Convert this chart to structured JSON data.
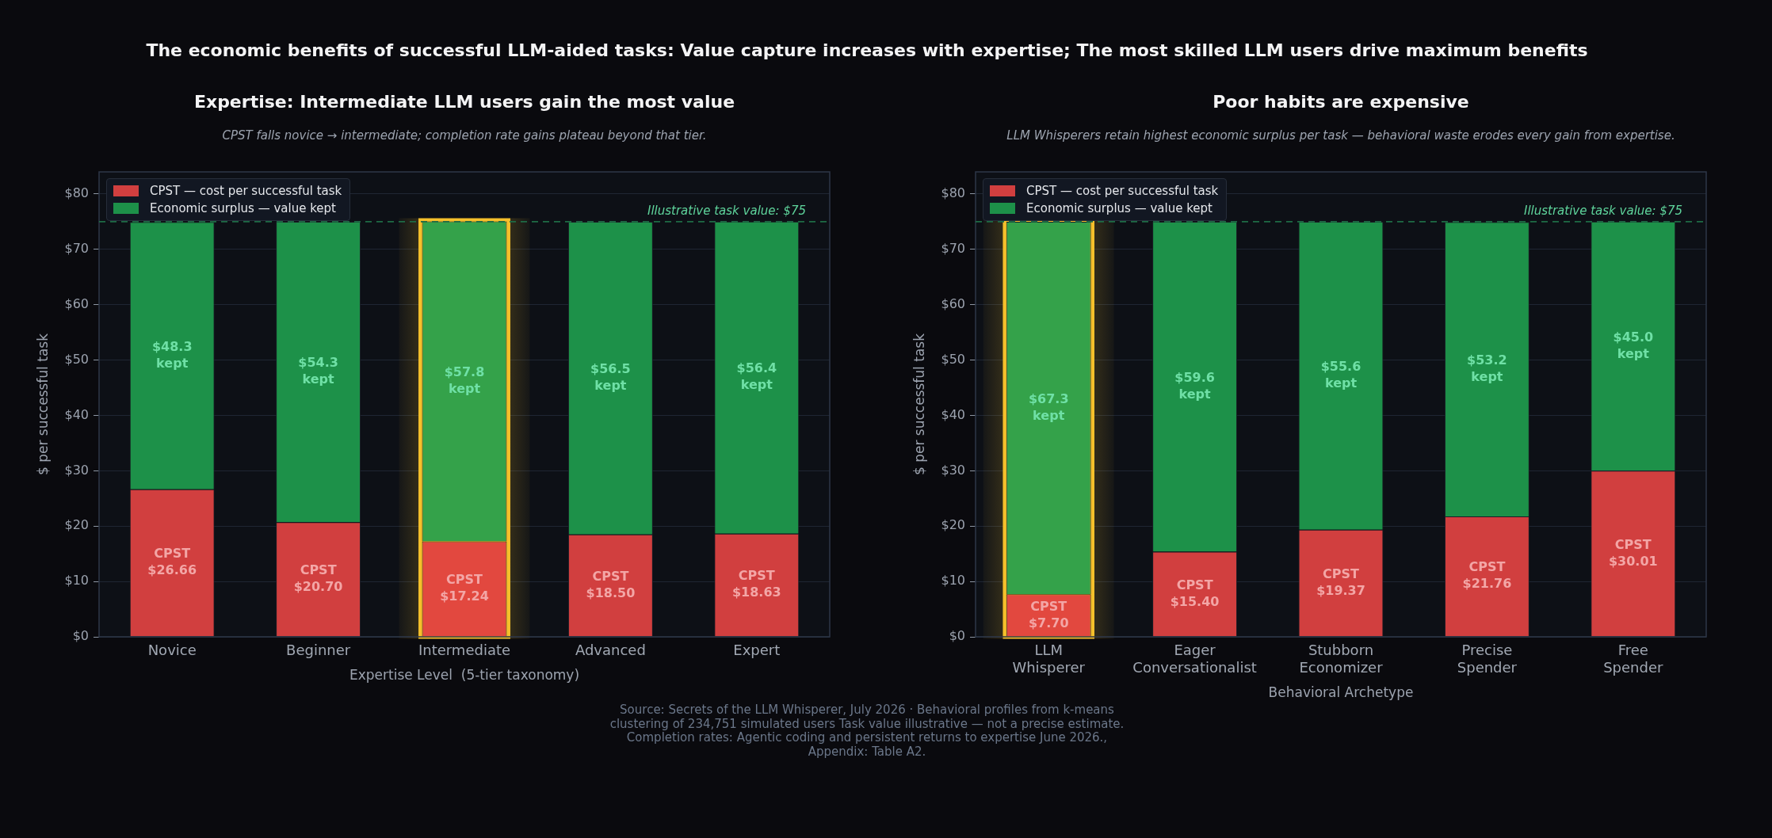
{
  "chart_data": [
    {
      "type": "other",
      "title": "The economic benefits of successful LLM-aided tasks: Value capture increases with expertise; The most skilled LLM users drive maximum benefits",
      "annotations": [
        "Source: Secrets of the LLM Whisperer, July 2026  ·  Behavioral profiles from k-means clustering of 234,751 simulated users   Task value illustrative — not a precise estimate.  Completion rates: Agentic coding and persistent returns to expertise June 2026., Appendix: Table A2."
      ]
    },
    {
      "type": "bar",
      "stacked": true,
      "title": "Expertise: Intermediate LLM users gain the most value",
      "subtitle": "CPST falls novice → intermediate; completion rate gains plateau beyond that tier.",
      "xlabel": "Expertise Level  (5-tier taxonomy)",
      "ylabel": "$ per successful task",
      "categories": [
        "Novice",
        "Beginner",
        "Intermediate",
        "Advanced",
        "Expert"
      ],
      "series": [
        {
          "name": "CPST — cost per successful task",
          "color": "#d13f3f",
          "colors": [
            "#d13f3f",
            "#d13f3f",
            "#e2483f",
            "#d13f3f",
            "#d13f3f"
          ],
          "values": [
            26.66,
            20.7,
            17.24,
            18.5,
            18.63
          ],
          "value_labels": [
            "CPST $26.66",
            "CPST $20.70",
            "CPST $17.24",
            "CPST $18.50",
            "CPST $18.63"
          ]
        },
        {
          "name": "Economic surplus — value kept",
          "color": "#1d9149",
          "colors": [
            "#1d9149",
            "#1d9149",
            "#34a24a",
            "#1d9149",
            "#1d9149"
          ],
          "values": [
            48.3,
            54.3,
            57.8,
            56.5,
            56.4
          ],
          "value_labels": [
            "$48.3 kept",
            "$54.3 kept",
            "$57.8 kept",
            "$56.5 kept",
            "$56.4 kept"
          ]
        }
      ],
      "ylim": [
        0,
        84
      ],
      "yticks": [
        {
          "value": 0,
          "label": "$0"
        },
        {
          "value": 10,
          "label": "$10"
        },
        {
          "value": 20,
          "label": "$20"
        },
        {
          "value": 30,
          "label": "$30"
        },
        {
          "value": 40,
          "label": "$40"
        },
        {
          "value": 50,
          "label": "$50"
        },
        {
          "value": 60,
          "label": "$60"
        },
        {
          "value": 70,
          "label": "$70"
        },
        {
          "value": 80,
          "label": "$80"
        }
      ],
      "grid": "y",
      "legend": "top left",
      "ref_lines": [
        {
          "axis": "y",
          "value": 75,
          "label": "Illustrative task value: $75",
          "color": "#1e6b45",
          "line_style": "dashed"
        }
      ],
      "bands": [
        {
          "axis": "x",
          "from": "Intermediate",
          "to": "Intermediate",
          "color": "#f5c02b"
        }
      ]
    },
    {
      "type": "bar",
      "stacked": true,
      "title": "Poor habits are expensive",
      "subtitle": "LLM Whisperers retain highest economic surplus per task — behavioral waste erodes every gain from expertise.",
      "xlabel": "Behavioral Archetype",
      "ylabel": "$ per successful task",
      "categories": [
        "LLM Whisperer",
        "Eager Conversationalist",
        "Stubborn Economizer",
        "Precise Spender",
        "Free Spender"
      ],
      "series": [
        {
          "name": "CPST — cost per successful task",
          "color": "#d13f3f",
          "colors": [
            "#e2483f",
            "#d13f3f",
            "#d13f3f",
            "#d13f3f",
            "#d13f3f"
          ],
          "values": [
            7.7,
            15.4,
            19.37,
            21.76,
            30.01
          ],
          "value_labels": [
            "CPST $7.70",
            "CPST $15.40",
            "CPST $19.37",
            "CPST $21.76",
            "CPST $30.01"
          ]
        },
        {
          "name": "Economic surplus — value kept",
          "color": "#1d9149",
          "colors": [
            "#34a24a",
            "#1d9149",
            "#1d9149",
            "#1d9149",
            "#1d9149"
          ],
          "values": [
            67.3,
            59.6,
            55.6,
            53.2,
            45.0
          ],
          "value_labels": [
            "$67.3 kept",
            "$59.6 kept",
            "$55.6 kept",
            "$53.2 kept",
            "$45.0 kept"
          ]
        }
      ],
      "ylim": [
        0,
        84
      ],
      "yticks": [
        {
          "value": 0,
          "label": "$0"
        },
        {
          "value": 10,
          "label": "$10"
        },
        {
          "value": 20,
          "label": "$20"
        },
        {
          "value": 30,
          "label": "$30"
        },
        {
          "value": 40,
          "label": "$40"
        },
        {
          "value": 50,
          "label": "$50"
        },
        {
          "value": 60,
          "label": "$60"
        },
        {
          "value": 70,
          "label": "$70"
        },
        {
          "value": 80,
          "label": "$80"
        }
      ],
      "grid": "y",
      "legend": "top left",
      "ref_lines": [
        {
          "axis": "y",
          "value": 75,
          "label": "Illustrative task value: $75",
          "color": "#1e6b45",
          "line_style": "dashed"
        }
      ],
      "bands": [
        {
          "axis": "x",
          "from": "LLM Whisperer",
          "to": "LLM Whisperer",
          "color": "#f5c02b"
        }
      ]
    }
  ]
}
